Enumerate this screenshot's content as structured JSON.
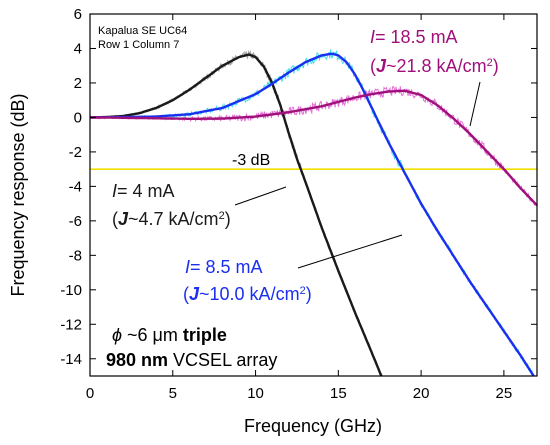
{
  "chart_data": {
    "type": "line",
    "title": "",
    "xlabel": "Frequency (GHz)",
    "ylabel": "Frequency response (dB)",
    "xlim": [
      0,
      27
    ],
    "ylim": [
      -15,
      6
    ],
    "xticks": [
      0,
      5,
      10,
      15,
      20,
      25
    ],
    "yticks": [
      6,
      4,
      2,
      0,
      -2,
      -4,
      -6,
      -8,
      -10,
      -12,
      -14
    ],
    "grid": false,
    "device_note": [
      "Kapalua SE UC64",
      "Row 1 Column 7"
    ],
    "reference_line": {
      "y": -3,
      "label": "-3 dB",
      "color": "#f0e000"
    },
    "device_caption": {
      "line1": {
        "symbol": "ϕ",
        "mid": " ~6 ",
        "unit": "μm",
        "bold": "triple"
      },
      "line2": {
        "bold": "980 nm",
        "rest": " VCSEL array"
      }
    },
    "series": [
      {
        "current": "= 4 mA",
        "density": "~4.7 kA/cm",
        "color": "#1a1a1a",
        "noise_color": "#9a9a9a",
        "x": [
          0,
          1,
          2,
          3,
          4,
          5,
          6,
          7,
          8,
          9,
          9.6,
          10,
          10.5,
          11,
          11.5,
          12,
          12.5,
          13,
          14,
          15,
          16,
          17,
          17.6
        ],
        "y": [
          0,
          0.02,
          0.08,
          0.25,
          0.55,
          1.0,
          1.6,
          2.3,
          3.0,
          3.5,
          3.65,
          3.5,
          2.95,
          2.0,
          0.7,
          -0.9,
          -2.4,
          -3.7,
          -6.4,
          -8.9,
          -11.3,
          -13.6,
          -15
        ]
      },
      {
        "current": "= 8.5 mA",
        "density": "~10.0 kA/cm",
        "color": "#1a2ff0",
        "noise_color": "#33dde8",
        "x": [
          0,
          2,
          4,
          6,
          8,
          10,
          11,
          12,
          13,
          14,
          14.6,
          15,
          15.5,
          16,
          16.5,
          17,
          18,
          19,
          20,
          21,
          22,
          23,
          24,
          25,
          26,
          26.8
        ],
        "y": [
          0,
          0.02,
          0.05,
          0.18,
          0.55,
          1.35,
          1.95,
          2.6,
          3.2,
          3.6,
          3.7,
          3.6,
          3.2,
          2.5,
          1.6,
          0.6,
          -1.4,
          -3.2,
          -5.0,
          -6.6,
          -8.1,
          -9.6,
          -11.0,
          -12.4,
          -13.8,
          -15
        ]
      },
      {
        "current": "= 18.5 mA",
        "density": "~21.8 kA/cm",
        "color": "#a0107a",
        "noise_color": "#e060d0",
        "x": [
          0,
          2,
          4,
          6,
          8,
          10,
          12,
          14,
          15,
          16,
          17,
          18,
          19,
          20,
          21,
          22,
          23,
          24,
          25,
          26,
          27
        ],
        "y": [
          0,
          -0.02,
          -0.05,
          -0.08,
          -0.07,
          0.05,
          0.3,
          0.65,
          0.9,
          1.15,
          1.35,
          1.5,
          1.55,
          1.3,
          0.7,
          -0.1,
          -1.0,
          -2.0,
          -3.0,
          -4.1,
          -5.1
        ]
      }
    ]
  }
}
